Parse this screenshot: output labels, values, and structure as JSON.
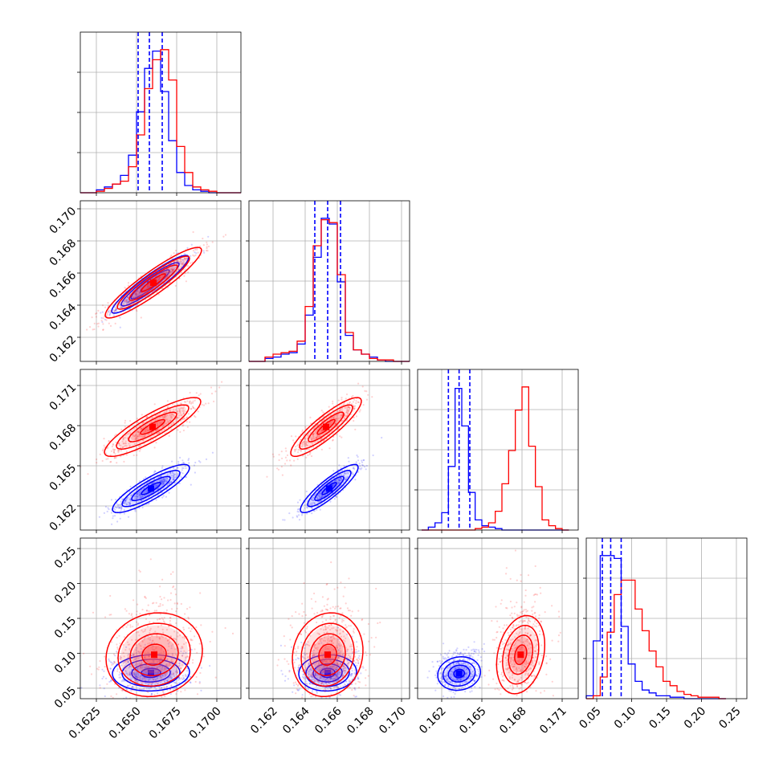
{
  "chart_data": {
    "type": "corner",
    "grid": true,
    "series": [
      {
        "name": "",
        "color": "#0000ff"
      },
      {
        "name": "",
        "color": "#ff0000"
      }
    ],
    "parameters": [
      {
        "range": [
          0.1615,
          0.1715
        ],
        "ticks": [
          0.1625,
          0.165,
          0.1675,
          0.17
        ],
        "tick_labels": [
          "0.1625",
          "0.1650",
          "0.1675",
          "0.1700"
        ],
        "quantiles": [
          0.1651,
          0.1658,
          0.1666
        ],
        "hist": {
          "bins": [
            0.1615,
            0.162,
            0.1625,
            0.163,
            0.1635,
            0.164,
            0.1645,
            0.165,
            0.1655,
            0.166,
            0.1665,
            0.167,
            0.1675,
            0.168,
            0.1685,
            0.169,
            0.1695,
            0.17,
            0.1705,
            0.171,
            0.1715
          ],
          "blue": [
            0,
            0,
            0.02,
            0.04,
            0.06,
            0.12,
            0.26,
            0.56,
            0.86,
            0.98,
            0.7,
            0.36,
            0.14,
            0.05,
            0.02,
            0.01,
            0,
            0,
            0,
            0
          ],
          "red": [
            0,
            0,
            0.01,
            0.03,
            0.06,
            0.08,
            0.18,
            0.4,
            0.72,
            0.92,
            0.99,
            0.78,
            0.32,
            0.14,
            0.04,
            0.02,
            0.01,
            0,
            0,
            0
          ]
        }
      },
      {
        "range": [
          0.1605,
          0.1705
        ],
        "ticks": [
          0.162,
          0.164,
          0.166,
          0.168,
          0.17
        ],
        "tick_labels": [
          "0.162",
          "0.164",
          "0.166",
          "0.168",
          "0.170"
        ],
        "quantiles": [
          0.1646,
          0.1654,
          0.1662
        ],
        "hist": {
          "bins": [
            0.1605,
            0.161,
            0.1615,
            0.162,
            0.1625,
            0.163,
            0.1635,
            0.164,
            0.1645,
            0.165,
            0.1655,
            0.166,
            0.1665,
            0.167,
            0.1675,
            0.168,
            0.1685,
            0.169,
            0.1695,
            0.17,
            0.1705
          ],
          "blue": [
            0,
            0,
            0.02,
            0.03,
            0.05,
            0.06,
            0.12,
            0.32,
            0.72,
            0.99,
            0.95,
            0.55,
            0.18,
            0.08,
            0.05,
            0.03,
            0.01,
            0,
            0,
            0
          ],
          "red": [
            0,
            0,
            0.03,
            0.05,
            0.06,
            0.07,
            0.14,
            0.38,
            0.8,
            0.98,
            0.96,
            0.6,
            0.2,
            0.08,
            0.05,
            0.02,
            0.01,
            0.01,
            0,
            0
          ]
        }
      },
      {
        "range": [
          0.1602,
          0.1722
        ],
        "ticks": [
          0.162,
          0.165,
          0.168,
          0.171
        ],
        "tick_labels": [
          "0.162",
          "0.165",
          "0.168",
          "0.171"
        ],
        "quantiles": [
          0.1625,
          0.1633,
          0.1641
        ],
        "hist": {
          "bins": [
            0.1605,
            0.161,
            0.1615,
            0.162,
            0.1625,
            0.163,
            0.1635,
            0.164,
            0.1645,
            0.165,
            0.1655,
            0.166,
            0.1665,
            0.167,
            0.1675,
            0.168,
            0.1685,
            0.169,
            0.1695,
            0.17,
            0.1705,
            0.171,
            0.1715
          ],
          "blue": [
            0,
            0.02,
            0.05,
            0.12,
            0.44,
            0.98,
            0.72,
            0.26,
            0.07,
            0.03,
            0.02,
            0.01,
            0,
            0,
            0,
            0,
            0,
            0,
            0,
            0,
            0,
            0
          ],
          "red": [
            0,
            0,
            0,
            0,
            0,
            0,
            0,
            0,
            0.01,
            0.02,
            0.05,
            0.13,
            0.32,
            0.55,
            0.83,
            0.99,
            0.58,
            0.3,
            0.07,
            0.03,
            0.01,
            0
          ]
        }
      },
      {
        "range": [
          0.035,
          0.265
        ],
        "ticks": [
          0.05,
          0.1,
          0.15,
          0.2,
          0.25
        ],
        "tick_labels": [
          "0.05",
          "0.10",
          "0.15",
          "0.20",
          "0.25"
        ],
        "quantiles": [
          0.058,
          0.07,
          0.085
        ],
        "hist": {
          "bins": [
            0.035,
            0.045,
            0.055,
            0.065,
            0.075,
            0.085,
            0.095,
            0.105,
            0.115,
            0.125,
            0.135,
            0.145,
            0.155,
            0.165,
            0.175,
            0.185,
            0.195,
            0.205,
            0.215,
            0.225,
            0.235
          ],
          "blue": [
            0.02,
            0.4,
            0.99,
            0.99,
            0.97,
            0.5,
            0.24,
            0.12,
            0.06,
            0.04,
            0.02,
            0.02,
            0.01,
            0.01,
            0,
            0,
            0,
            0,
            0,
            0
          ],
          "red": [
            0,
            0.02,
            0.15,
            0.46,
            0.72,
            0.82,
            0.82,
            0.62,
            0.47,
            0.33,
            0.22,
            0.12,
            0.09,
            0.05,
            0.03,
            0.02,
            0.01,
            0.01,
            0.01,
            0
          ]
        }
      }
    ],
    "clusters": {
      "1,0": {
        "blue": {
          "mean": [
            0.16585,
            0.1653
          ],
          "sd": [
            0.0012,
            0.0009
          ],
          "corr": 0.93
        },
        "red": {
          "mean": [
            0.16605,
            0.1654
          ],
          "sd": [
            0.0015,
            0.0011
          ],
          "corr": 0.92
        }
      },
      "2,0": {
        "blue": {
          "mean": [
            0.1659,
            0.1633
          ],
          "sd": [
            0.0012,
            0.0009
          ],
          "corr": 0.86
        },
        "red": {
          "mean": [
            0.166,
            0.1679
          ],
          "sd": [
            0.0015,
            0.0011
          ],
          "corr": 0.86
        }
      },
      "2,1": {
        "blue": {
          "mean": [
            0.1655,
            0.1633
          ],
          "sd": [
            0.0009,
            0.0009
          ],
          "corr": 0.88
        },
        "red": {
          "mean": [
            0.1653,
            0.1679
          ],
          "sd": [
            0.0011,
            0.0011
          ],
          "corr": 0.88
        }
      },
      "3,0": {
        "blue": {
          "mean": [
            0.1659,
            0.072
          ],
          "sd": [
            0.0012,
            0.013
          ],
          "corr": 0.05
        },
        "red": {
          "mean": [
            0.1661,
            0.098
          ],
          "sd": [
            0.0015,
            0.03
          ],
          "corr": 0.1
        }
      },
      "3,1": {
        "blue": {
          "mean": [
            0.1654,
            0.072
          ],
          "sd": [
            0.0009,
            0.013
          ],
          "corr": 0.05
        },
        "red": {
          "mean": [
            0.1654,
            0.098
          ],
          "sd": [
            0.0011,
            0.03
          ],
          "corr": 0.1
        }
      },
      "3,2": {
        "blue": {
          "mean": [
            0.1633,
            0.071
          ],
          "sd": [
            0.0008,
            0.012
          ],
          "corr": 0.1
        },
        "red": {
          "mean": [
            0.1679,
            0.098
          ],
          "sd": [
            0.0009,
            0.028
          ],
          "corr": 0.25
        }
      }
    },
    "colors": {
      "blue": "#0000ff",
      "red": "#ff0000",
      "grid": "#b0b0b0"
    }
  }
}
